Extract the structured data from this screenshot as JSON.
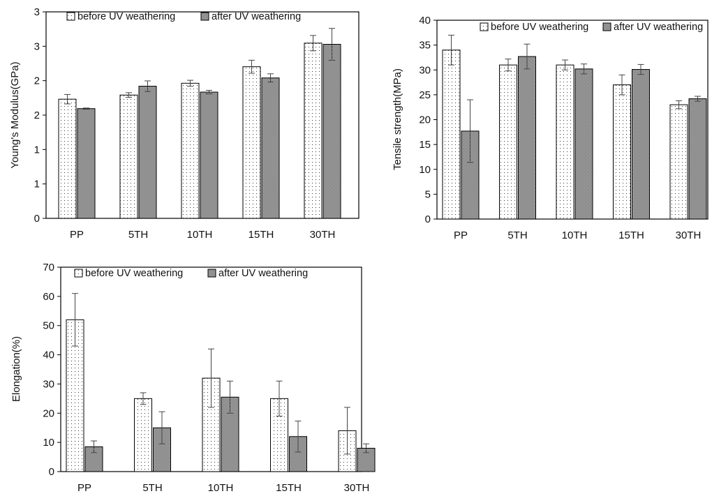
{
  "chart_data": [
    {
      "type": "bar",
      "categories": [
        "PP",
        "5TH",
        "10TH",
        "15TH",
        "30TH"
      ],
      "ytick_labels": [
        "0",
        "1",
        "1",
        "2",
        "2",
        "3",
        "3"
      ],
      "ylim": [
        0,
        3.5
      ],
      "ylabel": "Young's Modulus(GPa)",
      "xlabel": "",
      "legend_position": "top-left",
      "grid": false,
      "series": [
        {
          "name": "before UV weathering",
          "pattern": "dots",
          "values": [
            2.02,
            2.09,
            2.29,
            2.57,
            2.97
          ],
          "errors": [
            0.08,
            0.04,
            0.05,
            0.11,
            0.13
          ]
        },
        {
          "name": "after UV weathering",
          "pattern": "checker",
          "values": [
            1.86,
            2.24,
            2.14,
            2.38,
            2.95
          ],
          "errors": [
            0.01,
            0.09,
            0.03,
            0.07,
            0.27
          ]
        }
      ]
    },
    {
      "type": "bar",
      "categories": [
        "PP",
        "5TH",
        "10TH",
        "15TH",
        "30TH"
      ],
      "ytick_labels": [
        "0",
        "5",
        "10",
        "15",
        "20",
        "25",
        "30",
        "35",
        "40"
      ],
      "ylim": [
        0,
        40
      ],
      "ylabel": "Tensile strength(MPa)",
      "xlabel": "",
      "legend_position": "top-right",
      "grid": false,
      "series": [
        {
          "name": "before UV weathering",
          "pattern": "dots",
          "values": [
            34,
            31,
            31,
            27,
            23
          ],
          "errors": [
            3,
            1.2,
            1,
            2,
            0.8
          ]
        },
        {
          "name": "after UV weathering",
          "pattern": "checker",
          "values": [
            17.7,
            32.7,
            30.2,
            30.1,
            24.2
          ],
          "errors": [
            6.3,
            2.5,
            1,
            1,
            0.5
          ]
        }
      ]
    },
    {
      "type": "bar",
      "categories": [
        "PP",
        "5TH",
        "10TH",
        "15TH",
        "30TH"
      ],
      "ytick_labels": [
        "0",
        "10",
        "20",
        "30",
        "40",
        "50",
        "60",
        "70"
      ],
      "ylim": [
        0,
        70
      ],
      "ylabel": "Elongation(%)",
      "xlabel": "",
      "legend_position": "top-left",
      "grid": false,
      "series": [
        {
          "name": "before UV weathering",
          "pattern": "dots",
          "values": [
            52,
            25,
            32,
            25,
            14
          ],
          "errors": [
            9,
            2,
            10,
            6,
            8
          ]
        },
        {
          "name": "after UV weathering",
          "pattern": "checker",
          "values": [
            8.5,
            15,
            25.5,
            12,
            8
          ],
          "errors": [
            2,
            5.5,
            5.5,
            5.3,
            1.5
          ]
        }
      ]
    }
  ]
}
